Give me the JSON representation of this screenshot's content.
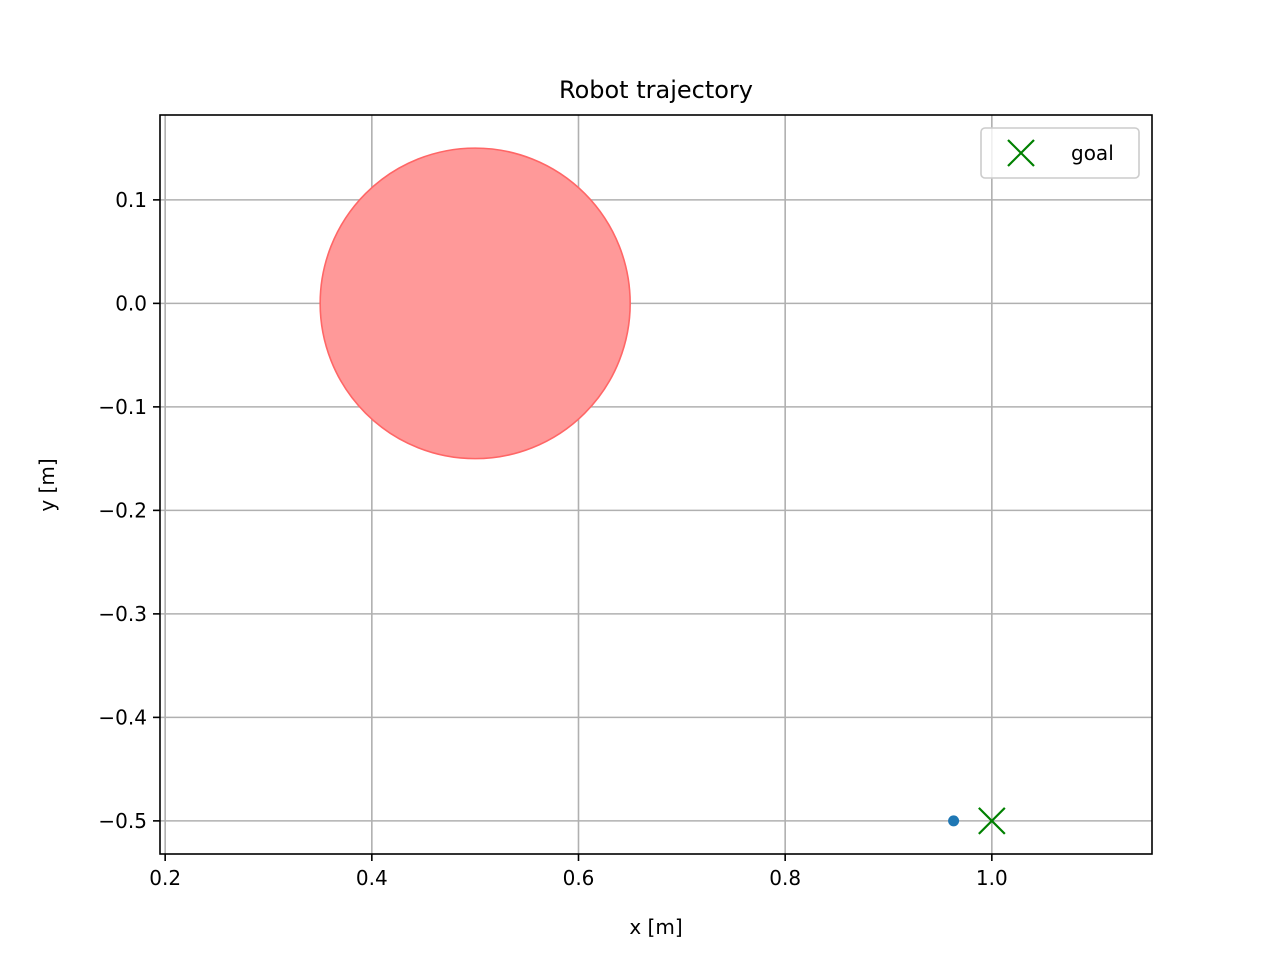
{
  "chart_data": {
    "type": "scatter",
    "title": "Robot trajectory",
    "xlabel": "x [m]",
    "ylabel": "y [m]",
    "xlim": [
      0.195,
      1.155
    ],
    "ylim": [
      -0.532,
      0.182
    ],
    "xticks": [
      0.2,
      0.4,
      0.6,
      0.8,
      1.0
    ],
    "xtick_labels": [
      "0.2",
      "0.4",
      "0.6",
      "0.8",
      "1.0"
    ],
    "yticks": [
      0.1,
      0.0,
      -0.1,
      -0.2,
      -0.3,
      -0.4,
      -0.5
    ],
    "ytick_labels": [
      "0.1",
      "0.0",
      "−0.1",
      "−0.2",
      "−0.3",
      "−0.4",
      "−0.5"
    ],
    "grid": true,
    "legend_position": "top-right",
    "obstacle": {
      "center": [
        0.5,
        0.0
      ],
      "radius": 0.15,
      "color": "#ff9999",
      "edge_color": "#ff6666"
    },
    "series": [
      {
        "kind": "trajectory",
        "color": "#1f77b4",
        "points": [
          [
            0.963,
            -0.5
          ]
        ]
      },
      {
        "kind": "goal",
        "name": "goal",
        "marker": "x",
        "color": "#008000",
        "points": [
          [
            1.0,
            -0.5
          ]
        ]
      }
    ]
  }
}
